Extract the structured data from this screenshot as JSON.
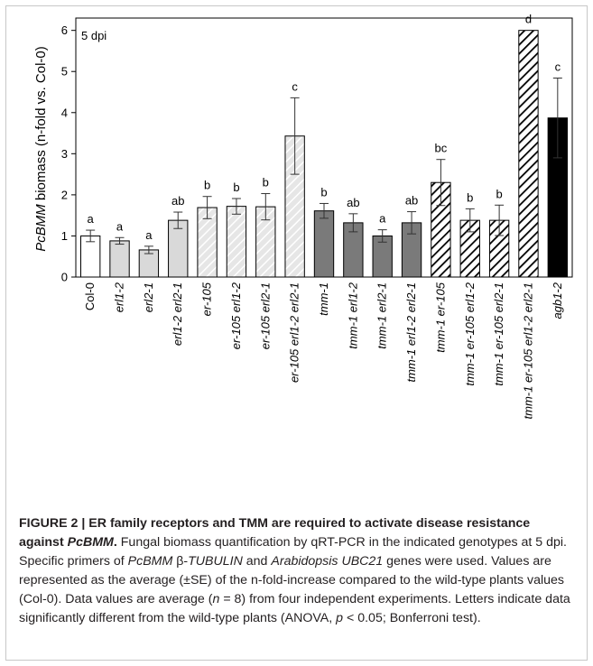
{
  "chart_data": {
    "type": "bar",
    "annotation": "5 dpi",
    "ylabel_italic": "PcBMM",
    "ylabel_rest": " biomass (n-fold vs. Col-0)",
    "ylim": [
      0,
      6.3
    ],
    "yticks": [
      0,
      1,
      2,
      3,
      4,
      5,
      6
    ],
    "grid": false,
    "categories": [
      "Col-0",
      "erl1-2",
      "erl2-1",
      "erl1-2 erl2-1",
      "er-105",
      "er-105 erl1-2",
      "er-105 erl2-1",
      "er-105 erl1-2 erl2-1",
      "tmm-1",
      "tmm-1 erl1-2",
      "tmm-1 erl2-1",
      "tmm-1 erl1-2 erl2-1",
      "tmm-1 er-105",
      "tmm-1 er-105 erl1-2",
      "tmm-1 er-105 erl2-1",
      "tmm-1 er-105 erl1-2 erl2-1",
      "agb1-2"
    ],
    "values": [
      1.0,
      0.88,
      0.66,
      1.38,
      1.69,
      1.72,
      1.71,
      3.43,
      1.61,
      1.32,
      1.0,
      1.32,
      2.3,
      1.38,
      1.38,
      6.0,
      3.87
    ],
    "errors": [
      0.14,
      0.08,
      0.09,
      0.2,
      0.27,
      0.19,
      0.32,
      0.93,
      0.18,
      0.22,
      0.15,
      0.27,
      0.56,
      0.28,
      0.37,
      0.0,
      0.97
    ],
    "letters": [
      "a",
      "a",
      "a",
      "ab",
      "b",
      "b",
      "b",
      "c",
      "b",
      "ab",
      "a",
      "ab",
      "bc",
      "b",
      "b",
      "d",
      "c"
    ],
    "styles": [
      "white",
      "lightgray",
      "lightgray",
      "lightgray",
      "hatch-light",
      "hatch-light",
      "hatch-light",
      "hatch-light",
      "darkgray",
      "darkgray",
      "darkgray",
      "darkgray",
      "hatch-dark",
      "hatch-dark",
      "hatch-dark",
      "hatch-dark",
      "black"
    ],
    "colors": {
      "white": "#ffffff",
      "lightgray": "#d9d9d9",
      "hatch_light_bg": "#e6e6e6",
      "hatch_light_stroke": "#ffffff",
      "darkgray": "#7a7a7a",
      "hatch_dark_bg": "#ffffff",
      "hatch_dark_stroke": "#000000",
      "black": "#000000",
      "outline": "#000000"
    }
  },
  "caption": {
    "label": "FIGURE 2 | ",
    "title_1": "ER family receptors and TMM are required to activate disease resistance against ",
    "title_italic": "PcBMM",
    "title_2": ".",
    "body_1": " Fungal biomass quantification by qRT-PCR in the indicated genotypes at 5 dpi. Specific primers of ",
    "body_it1": "PcBMM",
    "body_2": " β-",
    "body_it2": "TUBULIN",
    "body_3": " and ",
    "body_it3": "Arabidopsis UBC21",
    "body_4": " genes were used. Values are represented as the average (±SE) of the n-fold-increase compared to the wild-type plants values (Col-0). Data values are average (",
    "body_it4": "n",
    "body_5": " = 8) from four independent experiments. Letters indicate data significantly different from the wild-type plants (ANOVA, ",
    "body_it5": "p",
    "body_6": " < 0.05; Bonferroni test)."
  }
}
